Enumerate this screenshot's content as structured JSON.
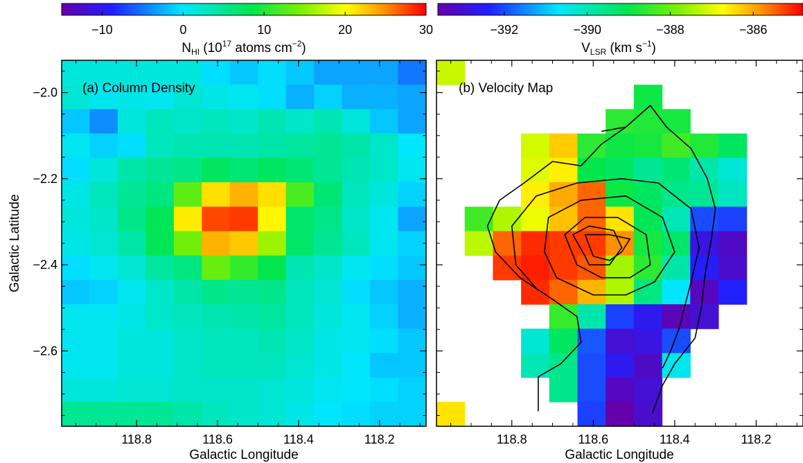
{
  "chart_data": [
    {
      "type": "heatmap",
      "panel_label": "(a) Column Density",
      "xlabel": "Galactic Longitude",
      "ylabel": "Galactic Latitude",
      "xlim": [
        118.985,
        118.085
      ],
      "ylim": [
        -2.775,
        -1.925
      ],
      "xticks": [
        "118.8",
        "118.6",
        "118.4",
        "118.2"
      ],
      "xtick_values": [
        118.8,
        118.6,
        118.4,
        118.2
      ],
      "yticks": [
        "−2.0",
        "−2.2",
        "−2.4",
        "−2.6"
      ],
      "ytick_values": [
        -2.0,
        -2.2,
        -2.4,
        -2.6
      ],
      "pixel_size_deg": 0.06,
      "colorbar": {
        "label_main": "N",
        "label_sub": "HI",
        "label_rest": " (10",
        "label_sup": "17",
        "label_tail": " atoms cm",
        "label_sup2": "−2",
        "label_close": ")",
        "range": [
          -15,
          30
        ],
        "ticks": [
          "−10",
          "0",
          "10",
          "20",
          "30"
        ],
        "tick_values": [
          -10,
          0,
          10,
          20,
          30
        ]
      },
      "z": [
        [
          1.5,
          1.5,
          1.5,
          1.5,
          1.5,
          -0.5,
          -1.5,
          -0.5,
          -1.5,
          -3.0,
          -3.0,
          -3.0,
          -5.0
        ],
        [
          2.0,
          0.5,
          1.0,
          0.5,
          2.0,
          1.0,
          0.5,
          -0.5,
          -2.5,
          -1.0,
          -2.5,
          -2.5,
          -3.0
        ],
        [
          -1.5,
          -4.0,
          1.5,
          3.0,
          2.5,
          3.0,
          2.5,
          3.5,
          2.5,
          3.5,
          1.5,
          -1.5,
          -3.0
        ],
        [
          0.5,
          -1.0,
          -0.5,
          3.0,
          3.5,
          3.5,
          3.5,
          4.0,
          4.5,
          5.0,
          4.0,
          2.5,
          0.0
        ],
        [
          -0.5,
          1.5,
          4.0,
          5.0,
          5.5,
          7.5,
          6.5,
          7.5,
          6.5,
          5.0,
          3.5,
          2.5,
          0.5
        ],
        [
          1.0,
          3.0,
          5.0,
          6.0,
          13.0,
          21.5,
          23.5,
          21.5,
          12.0,
          6.5,
          3.0,
          1.5,
          -1.0
        ],
        [
          1.5,
          2.5,
          5.5,
          8.0,
          21.0,
          27.5,
          28.0,
          20.5,
          7.0,
          5.5,
          2.5,
          0.5,
          -3.0
        ],
        [
          1.0,
          2.0,
          4.0,
          8.0,
          14.0,
          23.5,
          22.5,
          16.0,
          7.0,
          5.0,
          3.0,
          0.5,
          -1.0
        ],
        [
          -0.5,
          0.5,
          2.0,
          4.5,
          6.0,
          13.5,
          11.0,
          8.5,
          3.5,
          2.5,
          0.5,
          -0.5,
          -1.5
        ],
        [
          -1.5,
          -1.0,
          0.5,
          2.5,
          4.0,
          5.5,
          5.0,
          5.5,
          3.0,
          2.0,
          -0.5,
          -1.5,
          -2.5
        ],
        [
          0.5,
          0.5,
          1.0,
          2.5,
          3.0,
          3.5,
          4.0,
          4.5,
          3.0,
          1.5,
          0.5,
          -1.0,
          -2.5
        ],
        [
          0.5,
          0.5,
          1.5,
          1.5,
          2.5,
          3.0,
          3.0,
          3.5,
          2.5,
          1.0,
          0.5,
          -0.5,
          -1.5
        ],
        [
          0.5,
          0.5,
          1.5,
          1.5,
          2.5,
          3.0,
          3.0,
          3.0,
          2.0,
          1.0,
          0.0,
          -1.5,
          -1.5
        ],
        [
          1.5,
          1.5,
          2.0,
          2.0,
          2.5,
          2.5,
          2.5,
          2.0,
          1.5,
          0.5,
          0.0,
          -0.5,
          -1.0
        ],
        [
          5.0,
          5.0,
          5.0,
          5.0,
          4.0,
          3.0,
          2.5,
          2.0,
          1.0,
          0.0,
          -0.5,
          -1.0,
          -1.0
        ]
      ]
    },
    {
      "type": "heatmap",
      "panel_label": "(b) Velocity Map",
      "xlabel": "Galactic Longitude",
      "ylabel": "",
      "xlim": [
        118.985,
        118.085
      ],
      "ylim": [
        -2.775,
        -1.925
      ],
      "xticks": [
        "118.8",
        "118.6",
        "118.4",
        "118.2"
      ],
      "xtick_values": [
        118.8,
        118.6,
        118.4,
        118.2
      ],
      "pixel_size_deg": 0.06,
      "colorbar": {
        "label_main": "V",
        "label_sub": "LSR",
        "label_tail": " (km s",
        "label_sup": "−1",
        "label_close": ")",
        "range": [
          -393.6,
          -384.8
        ],
        "ticks": [
          "−392",
          "−390",
          "−388",
          "−386"
        ],
        "tick_values": [
          -392,
          -390,
          -388,
          -386
        ]
      },
      "z": [
        [
          -387.2,
          null,
          null,
          null,
          null,
          null,
          null,
          null,
          null,
          null,
          null,
          null,
          null
        ],
        [
          null,
          null,
          null,
          null,
          null,
          null,
          null,
          -388.9,
          null,
          null,
          null,
          null,
          null
        ],
        [
          null,
          null,
          null,
          null,
          null,
          null,
          -388.6,
          -388.7,
          -388.8,
          null,
          null,
          null,
          null
        ],
        [
          null,
          null,
          null,
          -387.1,
          -386.3,
          -388.6,
          -388.9,
          -388.8,
          -388.4,
          -388.7,
          -389.2,
          null,
          null
        ],
        [
          null,
          null,
          null,
          -387.0,
          -386.6,
          -389.0,
          -389.2,
          -389.7,
          -389.4,
          -389.9,
          -390.3,
          null,
          null
        ],
        [
          null,
          null,
          null,
          -386.6,
          -386.0,
          -385.5,
          -388.9,
          -389.2,
          -389.6,
          -389.7,
          -390.1,
          null,
          null
        ],
        [
          null,
          -388.4,
          -387.4,
          -386.9,
          -386.2,
          -385.5,
          -386.5,
          -389.1,
          -390.0,
          -392.0,
          -392.1,
          null,
          null
        ],
        [
          null,
          -387.3,
          -385.5,
          -385.1,
          -385.2,
          -385.2,
          -385.8,
          -388.8,
          -389.3,
          -392.8,
          -393.2,
          null,
          null
        ],
        [
          null,
          null,
          -385.2,
          -385.0,
          -385.2,
          -385.4,
          -387.5,
          -388.6,
          -389.9,
          -392.5,
          -393.1,
          null,
          null
        ],
        [
          null,
          null,
          null,
          -385.1,
          -385.5,
          -386.1,
          -387.4,
          -389.5,
          -390.7,
          -393.3,
          -392.4,
          null,
          null
        ],
        [
          null,
          null,
          null,
          null,
          -388.5,
          -389.9,
          -392.1,
          -392.6,
          -393.4,
          -393.0,
          null,
          null,
          null
        ],
        [
          null,
          null,
          null,
          -390.3,
          -389.2,
          -391.9,
          -393.0,
          -392.8,
          -392.0,
          null,
          null,
          null,
          null
        ],
        [
          null,
          null,
          null,
          -390.0,
          -389.6,
          -392.0,
          -392.6,
          -393.2,
          -390.5,
          null,
          null,
          null,
          null
        ],
        [
          null,
          null,
          null,
          null,
          -389.6,
          -392.0,
          -393.3,
          -393.0,
          null,
          null,
          null,
          null,
          null
        ],
        [
          -386.5,
          null,
          null,
          null,
          null,
          -392.1,
          -393.6,
          -393.1,
          null,
          null,
          null,
          null,
          null
        ]
      ],
      "contours": [
        [
          [
            118.735,
            -2.74
          ],
          [
            118.735,
            -2.66
          ],
          [
            118.68,
            -2.63
          ],
          [
            118.63,
            -2.58
          ],
          [
            118.64,
            -2.52
          ],
          [
            118.7,
            -2.48
          ],
          [
            118.78,
            -2.43
          ],
          [
            118.84,
            -2.37
          ],
          [
            118.86,
            -2.31
          ],
          [
            118.83,
            -2.25
          ],
          [
            118.77,
            -2.21
          ],
          [
            118.7,
            -2.16
          ],
          [
            118.63,
            -2.17
          ],
          [
            118.58,
            -2.12
          ],
          [
            118.52,
            -2.08
          ],
          [
            118.46,
            -2.03
          ],
          [
            118.42,
            -2.08
          ],
          [
            118.36,
            -2.13
          ],
          [
            118.32,
            -2.2
          ],
          [
            118.3,
            -2.27
          ],
          [
            118.31,
            -2.34
          ],
          [
            118.325,
            -2.42
          ],
          [
            118.335,
            -2.5
          ],
          [
            118.35,
            -2.57
          ],
          [
            118.4,
            -2.63
          ],
          [
            118.43,
            -2.68
          ],
          [
            118.455,
            -2.745
          ]
        ],
        [
          [
            118.58,
            -2.09
          ],
          [
            118.52,
            -2.08
          ],
          [
            118.46,
            -2.03
          ],
          [
            118.42,
            -2.08
          ]
        ],
        [
          [
            118.735,
            -2.46
          ],
          [
            118.79,
            -2.4
          ],
          [
            118.8,
            -2.31
          ],
          [
            118.74,
            -2.24
          ],
          [
            118.64,
            -2.21
          ],
          [
            118.53,
            -2.2
          ],
          [
            118.44,
            -2.21
          ],
          [
            118.36,
            -2.27
          ],
          [
            118.34,
            -2.36
          ],
          [
            118.36,
            -2.44
          ],
          [
            118.39,
            -2.55
          ],
          [
            118.41,
            -2.6
          ],
          [
            118.43,
            -2.64
          ]
        ],
        [
          [
            118.69,
            -2.43
          ],
          [
            118.72,
            -2.37
          ],
          [
            118.71,
            -2.29
          ],
          [
            118.63,
            -2.25
          ],
          [
            118.52,
            -2.24
          ],
          [
            118.43,
            -2.29
          ],
          [
            118.4,
            -2.37
          ],
          [
            118.45,
            -2.44
          ],
          [
            118.52,
            -2.47
          ],
          [
            118.6,
            -2.47
          ],
          [
            118.69,
            -2.43
          ]
        ],
        [
          [
            118.64,
            -2.4
          ],
          [
            118.67,
            -2.33
          ],
          [
            118.62,
            -2.29
          ],
          [
            118.54,
            -2.29
          ],
          [
            118.47,
            -2.33
          ],
          [
            118.46,
            -2.4
          ],
          [
            118.51,
            -2.43
          ],
          [
            118.58,
            -2.43
          ],
          [
            118.64,
            -2.4
          ]
        ],
        [
          [
            118.62,
            -2.38
          ],
          [
            118.65,
            -2.33
          ],
          [
            118.61,
            -2.31
          ],
          [
            118.55,
            -2.32
          ],
          [
            118.53,
            -2.36
          ],
          [
            118.56,
            -2.4
          ],
          [
            118.61,
            -2.4
          ],
          [
            118.62,
            -2.38
          ]
        ],
        [
          [
            118.6,
            -2.38
          ],
          [
            118.62,
            -2.33
          ],
          [
            118.56,
            -2.33
          ],
          [
            118.51,
            -2.34
          ],
          [
            118.53,
            -2.37
          ],
          [
            118.56,
            -2.39
          ],
          [
            118.6,
            -2.38
          ]
        ]
      ]
    }
  ]
}
